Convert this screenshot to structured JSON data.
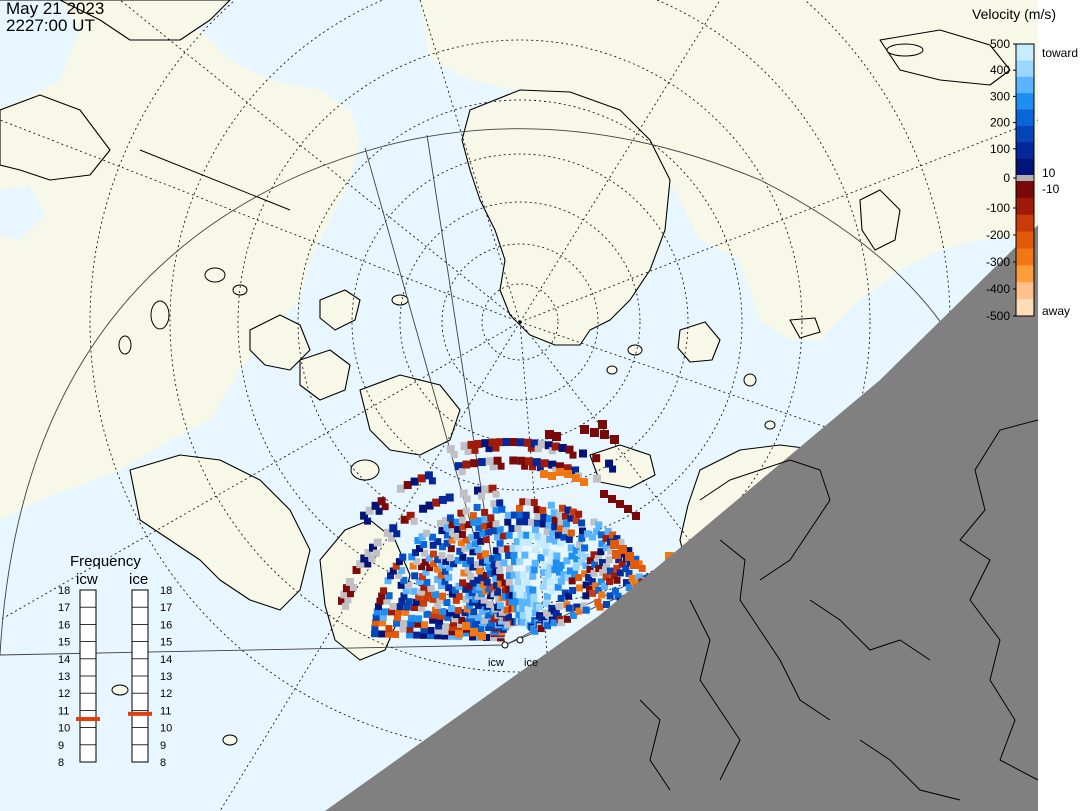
{
  "header": {
    "date": "May 21 2023",
    "time": "2227:00 UT"
  },
  "legend": {
    "title": "Velocity (m/s)",
    "ticks": [
      "500",
      "400",
      "300",
      "200",
      "100",
      "0",
      "-100",
      "-200",
      "-300",
      "-400",
      "-500"
    ],
    "tick_values": [
      500,
      400,
      300,
      200,
      100,
      0,
      -100,
      -200,
      -300,
      -400,
      -500
    ],
    "toward_label": "toward",
    "away_label": "away",
    "pos_threshold": "10",
    "neg_threshold": "-10",
    "colors_toward": [
      "#c8ecff",
      "#9bd6ff",
      "#5ab4ff",
      "#1e8ef0",
      "#0a66d8",
      "#0645b8",
      "#04289a",
      "#021478"
    ],
    "colors_away": [
      "#7a0a0a",
      "#a01a0a",
      "#c83c0c",
      "#e05a0a",
      "#f07814",
      "#ff9c3c",
      "#ffc08c",
      "#ffdcb8"
    ]
  },
  "frequency": {
    "title": "Frequency",
    "radars": [
      {
        "name": "icw",
        "value": 10.5
      },
      {
        "name": "ice",
        "value": 10.8
      }
    ],
    "scale_labels": [
      "18",
      "17",
      "16",
      "15",
      "14",
      "13",
      "12",
      "11",
      "10",
      "9",
      "8"
    ],
    "scale_min": 8,
    "scale_max": 18
  },
  "sites": {
    "icw": "icw",
    "ice": "ice"
  },
  "colors": {
    "ocean": "#e8f6ff",
    "land": "#f8f8e8",
    "night": "#808080",
    "coast": "#000000",
    "ground_scatter": "#c0c0c4",
    "freq_marker": "#e04010"
  }
}
